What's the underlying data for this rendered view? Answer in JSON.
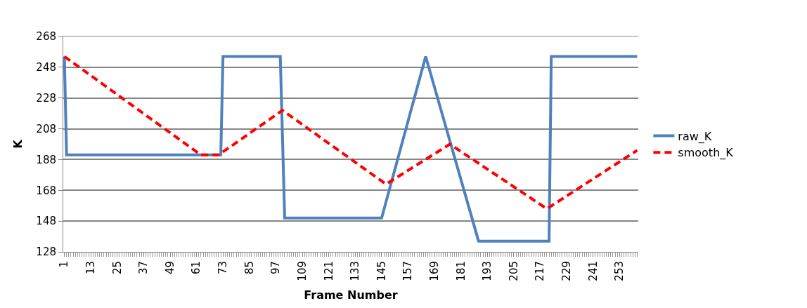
{
  "chart_data": {
    "type": "line",
    "xlabel": "Frame Number",
    "ylabel": "K",
    "xlim": [
      0.5,
      261.5
    ],
    "xticks": [
      1,
      13,
      25,
      37,
      49,
      61,
      73,
      85,
      97,
      109,
      121,
      133,
      145,
      157,
      169,
      181,
      193,
      205,
      217,
      229,
      241,
      253
    ],
    "ylim": [
      128,
      268
    ],
    "yticks": [
      128,
      148,
      168,
      188,
      208,
      228,
      248,
      268
    ],
    "grid": "y",
    "legend": "right",
    "marker": "none",
    "series": [
      {
        "name": "raw_K",
        "color": "#4f81bd",
        "line_style": "solid",
        "x": [
          1,
          2,
          72,
          73,
          99,
          101,
          145,
          165,
          189,
          221,
          222,
          261
        ],
        "values": [
          255,
          191,
          191,
          255,
          255,
          150,
          150,
          255,
          135,
          135,
          255,
          255
        ]
      },
      {
        "name": "smooth_K",
        "color": "#ff0000",
        "line_style": "dashed",
        "x": [
          1,
          63,
          71,
          100,
          147,
          176,
          220,
          261
        ],
        "values": [
          255,
          191,
          191,
          220,
          172,
          198,
          156,
          194
        ]
      }
    ]
  }
}
